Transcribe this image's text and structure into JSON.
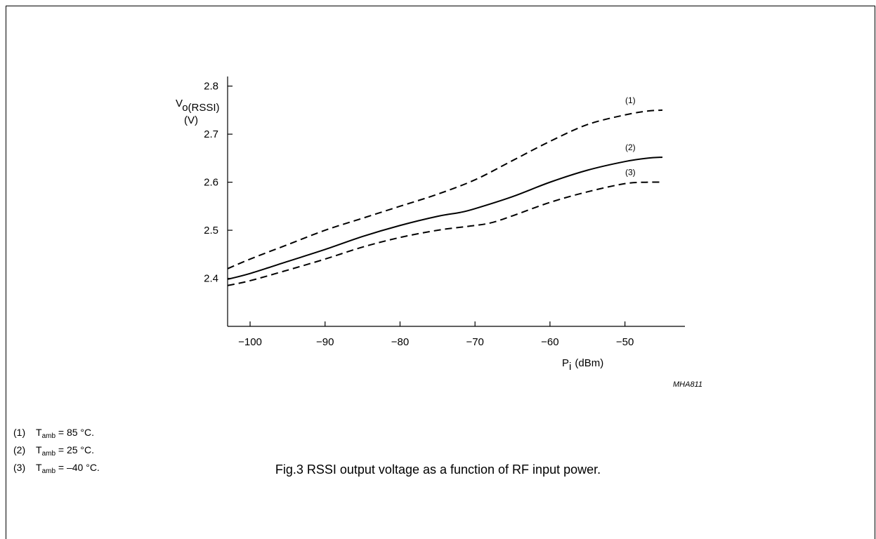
{
  "chart_data": {
    "type": "line",
    "ylabel_main": "V",
    "ylabel_sub": "o(RSSI)",
    "ylabel_unit": "(V)",
    "xlabel_main": "P",
    "xlabel_sub": "i",
    "xlabel_unit": "(dBm)",
    "figure_code": "MHA811",
    "xlim": [
      -103,
      -42
    ],
    "ylim": [
      2.3,
      2.82
    ],
    "xticks": [
      -100,
      -90,
      -80,
      -70,
      -60,
      -50
    ],
    "xtick_labels": [
      "−100",
      "−90",
      "−80",
      "−70",
      "−60",
      "−50"
    ],
    "yticks": [
      2.4,
      2.5,
      2.6,
      2.7,
      2.8
    ],
    "ytick_labels": [
      "2.4",
      "2.5",
      "2.6",
      "2.7",
      "2.8"
    ],
    "grid": false,
    "series": [
      {
        "name": "(1)",
        "style": "dashed",
        "x": [
          -103,
          -100,
          -95,
          -90,
          -85,
          -80,
          -75,
          -70,
          -65,
          -60,
          -55,
          -50,
          -47,
          -45
        ],
        "y": [
          2.42,
          2.44,
          2.47,
          2.5,
          2.525,
          2.55,
          2.575,
          2.605,
          2.645,
          2.685,
          2.72,
          2.74,
          2.748,
          2.75
        ]
      },
      {
        "name": "(2)",
        "style": "solid",
        "x": [
          -103,
          -100,
          -95,
          -90,
          -85,
          -80,
          -75,
          -72,
          -70,
          -65,
          -60,
          -55,
          -50,
          -47,
          -45
        ],
        "y": [
          2.398,
          2.41,
          2.435,
          2.46,
          2.487,
          2.51,
          2.529,
          2.537,
          2.545,
          2.57,
          2.6,
          2.625,
          2.643,
          2.65,
          2.652
        ]
      },
      {
        "name": "(3)",
        "style": "dashed",
        "x": [
          -103,
          -100,
          -95,
          -90,
          -85,
          -80,
          -75,
          -71,
          -68,
          -65,
          -60,
          -55,
          -50,
          -47,
          -45
        ],
        "y": [
          2.385,
          2.395,
          2.417,
          2.44,
          2.465,
          2.485,
          2.5,
          2.508,
          2.515,
          2.53,
          2.558,
          2.58,
          2.597,
          2.6,
          2.6
        ]
      }
    ]
  },
  "notes": [
    {
      "num": "(1)",
      "sym": "T",
      "sub": "amb",
      "text": " = 85 °C."
    },
    {
      "num": "(2)",
      "sym": "T",
      "sub": "amb",
      "text": " = 25 °C."
    },
    {
      "num": "(3)",
      "sym": "T",
      "sub": "amb",
      "text": " = –40 °C."
    }
  ],
  "caption": "Fig.3  RSSI output voltage as a function of RF input power."
}
